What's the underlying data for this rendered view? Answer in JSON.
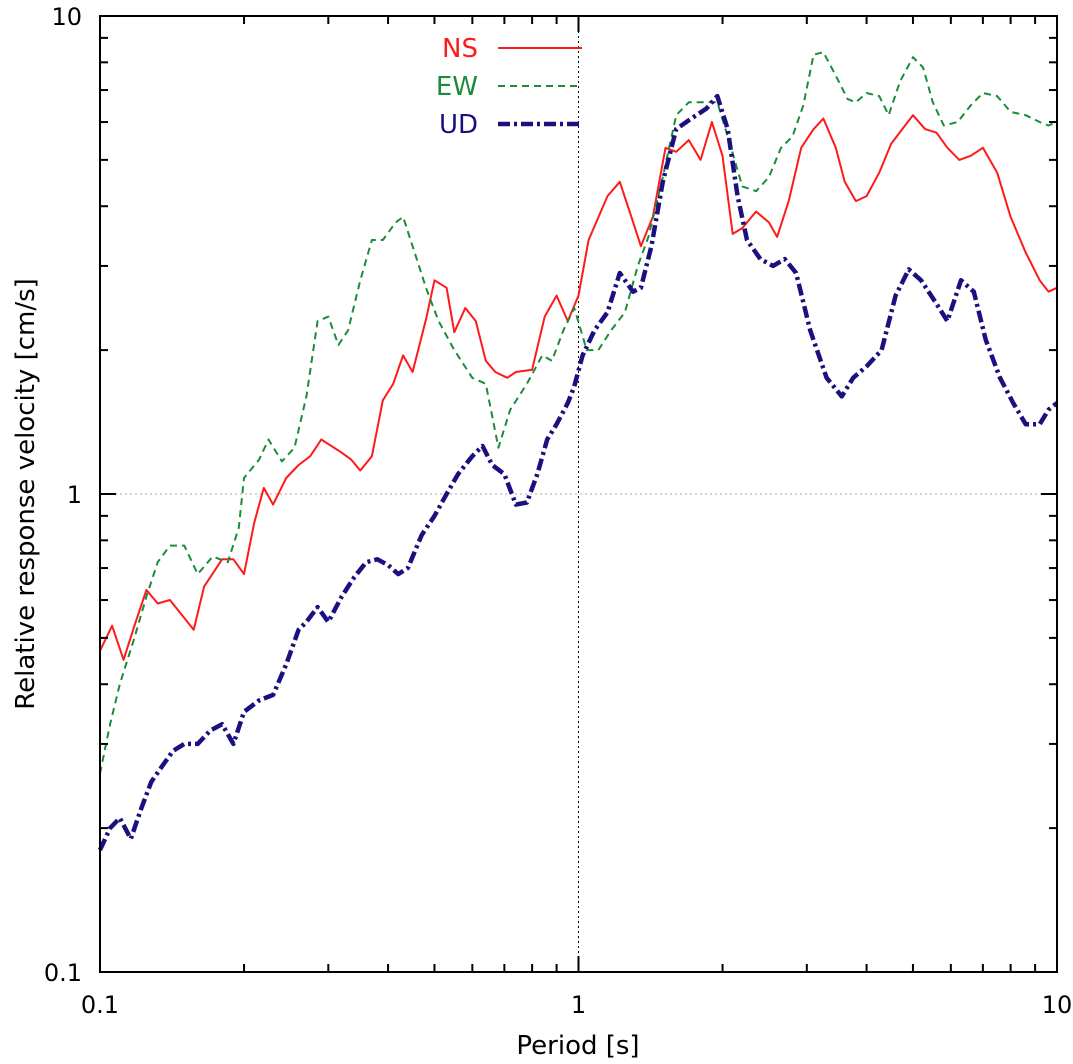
{
  "chart_data": {
    "type": "line",
    "title": "",
    "xlabel": "Period [s]",
    "ylabel": "Relative response velocity [cm/s]",
    "xscale": "log",
    "yscale": "log",
    "xlim": [
      0.1,
      10
    ],
    "ylim": [
      0.1,
      10
    ],
    "x_tick_labels": [
      "0.1",
      "1",
      "10"
    ],
    "y_tick_labels": [
      "0.1",
      "1",
      "10"
    ],
    "grid": "dotted reference lines at x=1 and y=1",
    "legend_position": "top-center",
    "colors": {
      "NS": "#ff1a1a",
      "EW": "#1a8c3a",
      "UD": "#1a1080"
    },
    "series": [
      {
        "name": "NS",
        "style": "solid",
        "points": [
          [
            0.1,
            0.47
          ],
          [
            0.106,
            0.53
          ],
          [
            0.112,
            0.45
          ],
          [
            0.118,
            0.53
          ],
          [
            0.125,
            0.63
          ],
          [
            0.132,
            0.59
          ],
          [
            0.14,
            0.6
          ],
          [
            0.157,
            0.52
          ],
          [
            0.165,
            0.64
          ],
          [
            0.18,
            0.73
          ],
          [
            0.19,
            0.73
          ],
          [
            0.2,
            0.68
          ],
          [
            0.21,
            0.87
          ],
          [
            0.22,
            1.03
          ],
          [
            0.23,
            0.95
          ],
          [
            0.245,
            1.08
          ],
          [
            0.26,
            1.15
          ],
          [
            0.275,
            1.2
          ],
          [
            0.29,
            1.3
          ],
          [
            0.32,
            1.22
          ],
          [
            0.335,
            1.18
          ],
          [
            0.35,
            1.12
          ],
          [
            0.37,
            1.2
          ],
          [
            0.39,
            1.57
          ],
          [
            0.41,
            1.7
          ],
          [
            0.43,
            1.95
          ],
          [
            0.45,
            1.8
          ],
          [
            0.48,
            2.32
          ],
          [
            0.5,
            2.8
          ],
          [
            0.53,
            2.7
          ],
          [
            0.55,
            2.18
          ],
          [
            0.58,
            2.45
          ],
          [
            0.61,
            2.3
          ],
          [
            0.64,
            1.9
          ],
          [
            0.67,
            1.8
          ],
          [
            0.71,
            1.75
          ],
          [
            0.74,
            1.8
          ],
          [
            0.8,
            1.82
          ],
          [
            0.85,
            2.35
          ],
          [
            0.9,
            2.6
          ],
          [
            0.95,
            2.3
          ],
          [
            1.0,
            2.6
          ],
          [
            1.05,
            3.4
          ],
          [
            1.15,
            4.2
          ],
          [
            1.22,
            4.5
          ],
          [
            1.29,
            3.8
          ],
          [
            1.35,
            3.3
          ],
          [
            1.43,
            3.8
          ],
          [
            1.52,
            5.3
          ],
          [
            1.6,
            5.2
          ],
          [
            1.7,
            5.5
          ],
          [
            1.8,
            5.0
          ],
          [
            1.9,
            6.0
          ],
          [
            2.0,
            5.1
          ],
          [
            2.1,
            3.5
          ],
          [
            2.2,
            3.6
          ],
          [
            2.35,
            3.9
          ],
          [
            2.5,
            3.7
          ],
          [
            2.6,
            3.45
          ],
          [
            2.75,
            4.1
          ],
          [
            2.92,
            5.3
          ],
          [
            3.1,
            5.8
          ],
          [
            3.25,
            6.1
          ],
          [
            3.45,
            5.3
          ],
          [
            3.6,
            4.5
          ],
          [
            3.8,
            4.1
          ],
          [
            4.0,
            4.2
          ],
          [
            4.25,
            4.7
          ],
          [
            4.5,
            5.4
          ],
          [
            4.75,
            5.8
          ],
          [
            5.0,
            6.2
          ],
          [
            5.3,
            5.8
          ],
          [
            5.6,
            5.7
          ],
          [
            5.9,
            5.3
          ],
          [
            6.25,
            5.0
          ],
          [
            6.6,
            5.1
          ],
          [
            7.0,
            5.3
          ],
          [
            7.5,
            4.7
          ],
          [
            8.0,
            3.8
          ],
          [
            8.6,
            3.2
          ],
          [
            9.2,
            2.8
          ],
          [
            9.6,
            2.65
          ],
          [
            10.0,
            2.7
          ]
        ]
      },
      {
        "name": "EW",
        "style": "dashed",
        "points": [
          [
            0.1,
            0.26
          ],
          [
            0.105,
            0.33
          ],
          [
            0.11,
            0.4
          ],
          [
            0.118,
            0.5
          ],
          [
            0.125,
            0.61
          ],
          [
            0.132,
            0.72
          ],
          [
            0.14,
            0.78
          ],
          [
            0.15,
            0.78
          ],
          [
            0.16,
            0.68
          ],
          [
            0.172,
            0.74
          ],
          [
            0.185,
            0.72
          ],
          [
            0.195,
            0.85
          ],
          [
            0.2,
            1.08
          ],
          [
            0.215,
            1.18
          ],
          [
            0.225,
            1.3
          ],
          [
            0.24,
            1.17
          ],
          [
            0.255,
            1.25
          ],
          [
            0.27,
            1.6
          ],
          [
            0.285,
            2.3
          ],
          [
            0.3,
            2.35
          ],
          [
            0.315,
            2.05
          ],
          [
            0.33,
            2.2
          ],
          [
            0.35,
            2.8
          ],
          [
            0.37,
            3.4
          ],
          [
            0.39,
            3.4
          ],
          [
            0.415,
            3.7
          ],
          [
            0.43,
            3.8
          ],
          [
            0.45,
            3.3
          ],
          [
            0.48,
            2.7
          ],
          [
            0.51,
            2.3
          ],
          [
            0.55,
            2.0
          ],
          [
            0.6,
            1.75
          ],
          [
            0.64,
            1.7
          ],
          [
            0.68,
            1.25
          ],
          [
            0.72,
            1.5
          ],
          [
            0.78,
            1.7
          ],
          [
            0.84,
            1.95
          ],
          [
            0.88,
            1.9
          ],
          [
            0.93,
            2.2
          ],
          [
            0.98,
            2.45
          ],
          [
            1.04,
            2.0
          ],
          [
            1.1,
            2.0
          ],
          [
            1.17,
            2.2
          ],
          [
            1.25,
            2.4
          ],
          [
            1.33,
            3.0
          ],
          [
            1.4,
            3.45
          ],
          [
            1.5,
            4.6
          ],
          [
            1.6,
            6.2
          ],
          [
            1.7,
            6.6
          ],
          [
            1.8,
            6.6
          ],
          [
            1.95,
            6.6
          ],
          [
            2.05,
            5.6
          ],
          [
            2.2,
            4.4
          ],
          [
            2.35,
            4.3
          ],
          [
            2.5,
            4.6
          ],
          [
            2.65,
            5.3
          ],
          [
            2.8,
            5.6
          ],
          [
            2.95,
            6.5
          ],
          [
            3.1,
            8.3
          ],
          [
            3.25,
            8.4
          ],
          [
            3.45,
            7.5
          ],
          [
            3.65,
            6.7
          ],
          [
            3.8,
            6.6
          ],
          [
            4.0,
            6.9
          ],
          [
            4.25,
            6.8
          ],
          [
            4.45,
            6.2
          ],
          [
            4.7,
            7.3
          ],
          [
            5.0,
            8.2
          ],
          [
            5.25,
            7.8
          ],
          [
            5.5,
            6.6
          ],
          [
            5.8,
            5.9
          ],
          [
            6.2,
            6.0
          ],
          [
            6.6,
            6.5
          ],
          [
            7.0,
            6.9
          ],
          [
            7.5,
            6.8
          ],
          [
            8.0,
            6.3
          ],
          [
            8.6,
            6.2
          ],
          [
            9.2,
            6.0
          ],
          [
            9.6,
            5.9
          ],
          [
            10.0,
            6.0
          ]
        ]
      },
      {
        "name": "UD",
        "style": "dash-dot",
        "points": [
          [
            0.1,
            0.18
          ],
          [
            0.105,
            0.2
          ],
          [
            0.11,
            0.21
          ],
          [
            0.116,
            0.19
          ],
          [
            0.122,
            0.22
          ],
          [
            0.128,
            0.25
          ],
          [
            0.135,
            0.27
          ],
          [
            0.142,
            0.29
          ],
          [
            0.15,
            0.3
          ],
          [
            0.16,
            0.3
          ],
          [
            0.17,
            0.32
          ],
          [
            0.18,
            0.33
          ],
          [
            0.19,
            0.3
          ],
          [
            0.2,
            0.35
          ],
          [
            0.215,
            0.37
          ],
          [
            0.23,
            0.38
          ],
          [
            0.245,
            0.44
          ],
          [
            0.26,
            0.52
          ],
          [
            0.27,
            0.54
          ],
          [
            0.285,
            0.58
          ],
          [
            0.3,
            0.54
          ],
          [
            0.32,
            0.61
          ],
          [
            0.34,
            0.67
          ],
          [
            0.36,
            0.72
          ],
          [
            0.38,
            0.73
          ],
          [
            0.4,
            0.71
          ],
          [
            0.42,
            0.68
          ],
          [
            0.44,
            0.7
          ],
          [
            0.47,
            0.82
          ],
          [
            0.5,
            0.9
          ],
          [
            0.53,
            1.0
          ],
          [
            0.56,
            1.1
          ],
          [
            0.6,
            1.2
          ],
          [
            0.63,
            1.26
          ],
          [
            0.66,
            1.15
          ],
          [
            0.7,
            1.1
          ],
          [
            0.74,
            0.95
          ],
          [
            0.78,
            0.96
          ],
          [
            0.82,
            1.1
          ],
          [
            0.86,
            1.3
          ],
          [
            0.9,
            1.4
          ],
          [
            0.95,
            1.55
          ],
          [
            0.98,
            1.68
          ],
          [
            1.02,
            1.95
          ],
          [
            1.08,
            2.2
          ],
          [
            1.15,
            2.4
          ],
          [
            1.22,
            2.9
          ],
          [
            1.3,
            2.65
          ],
          [
            1.35,
            2.7
          ],
          [
            1.42,
            3.3
          ],
          [
            1.5,
            4.5
          ],
          [
            1.6,
            5.8
          ],
          [
            1.72,
            6.1
          ],
          [
            1.85,
            6.4
          ],
          [
            1.95,
            6.8
          ],
          [
            2.05,
            5.8
          ],
          [
            2.15,
            4.2
          ],
          [
            2.25,
            3.4
          ],
          [
            2.4,
            3.1
          ],
          [
            2.55,
            3.0
          ],
          [
            2.7,
            3.1
          ],
          [
            2.85,
            2.9
          ],
          [
            3.05,
            2.2
          ],
          [
            3.3,
            1.75
          ],
          [
            3.55,
            1.6
          ],
          [
            3.75,
            1.75
          ],
          [
            4.0,
            1.85
          ],
          [
            4.3,
            2.0
          ],
          [
            4.6,
            2.6
          ],
          [
            4.9,
            2.95
          ],
          [
            5.2,
            2.8
          ],
          [
            5.6,
            2.5
          ],
          [
            5.9,
            2.3
          ],
          [
            6.3,
            2.8
          ],
          [
            6.7,
            2.65
          ],
          [
            7.1,
            2.1
          ],
          [
            7.6,
            1.75
          ],
          [
            8.1,
            1.55
          ],
          [
            8.6,
            1.4
          ],
          [
            9.2,
            1.4
          ],
          [
            9.6,
            1.5
          ],
          [
            10.0,
            1.55
          ]
        ]
      }
    ]
  }
}
